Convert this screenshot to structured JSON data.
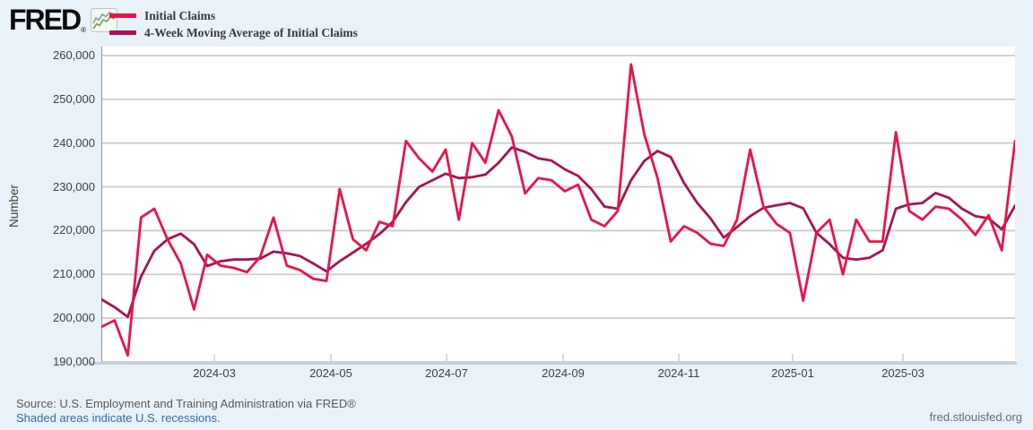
{
  "header": {
    "logo_text": "FRED",
    "registered_mark": "®"
  },
  "legend": {
    "items": [
      {
        "label": "Initial Claims",
        "color": "#e9134a"
      },
      {
        "label": "4-Week Moving Average of Initial Claims",
        "color": "#a61355"
      }
    ]
  },
  "footer": {
    "source_line": "Source: U.S. Employment and Training Administration via FRED®",
    "recession_note": "Shaded areas indicate U.S. recessions.",
    "site_url": "fred.stlouisfed.org"
  },
  "colors": {
    "background": "#e9f1f9",
    "plot_background": "#ffffff",
    "gridline": "#cccccc",
    "axis_line": "#c6cfd9",
    "tick_text": "#424242",
    "link": "#2e6db0",
    "series_initial_claims": "#e9134a",
    "series_moving_average": "#a61355"
  },
  "chart_data": {
    "type": "line",
    "title": "",
    "xlabel": "",
    "ylabel": "Number",
    "ylim": [
      190000,
      260000
    ],
    "grid": true,
    "legend_position": "top-left",
    "y_ticks": [
      {
        "label": "260,000",
        "value": 260000
      },
      {
        "label": "250,000",
        "value": 250000
      },
      {
        "label": "240,000",
        "value": 240000
      },
      {
        "label": "230,000",
        "value": 230000
      },
      {
        "label": "220,000",
        "value": 220000
      },
      {
        "label": "210,000",
        "value": 210000
      },
      {
        "label": "200,000",
        "value": 200000
      },
      {
        "label": "190,000",
        "value": 190000
      }
    ],
    "x_ticks": [
      {
        "label": "2024-03",
        "pos": 0.1237
      },
      {
        "label": "2024-05",
        "pos": 0.2512
      },
      {
        "label": "2024-07",
        "pos": 0.3778
      },
      {
        "label": "2024-09",
        "pos": 0.5054
      },
      {
        "label": "2024-11",
        "pos": 0.632
      },
      {
        "label": "2025-01",
        "pos": 0.7566
      },
      {
        "label": "2025-03",
        "pos": 0.8773
      }
    ],
    "x_range_note": "weekly values, 2024-01 through 2025-04",
    "series": [
      {
        "name": "Initial Claims",
        "color": "#e9134a",
        "values": [
          198000,
          199500,
          191500,
          223000,
          225000,
          218000,
          212500,
          202000,
          214500,
          212000,
          211500,
          210500,
          214000,
          223000,
          212000,
          211000,
          209000,
          208500,
          229500,
          218000,
          215500,
          222000,
          221000,
          240500,
          236500,
          233500,
          238500,
          222500,
          240000,
          235500,
          247500,
          241500,
          228500,
          232000,
          231500,
          229000,
          230500,
          222500,
          221000,
          224500,
          258000,
          242000,
          232000,
          217500,
          221000,
          219500,
          217000,
          216500,
          222500,
          238500,
          225500,
          221500,
          219500,
          204000,
          219500,
          222500,
          210000,
          222500,
          217500,
          217500,
          242500,
          224500,
          222500,
          225500,
          225000,
          222500,
          219000,
          223500,
          215500,
          240500
        ]
      },
      {
        "name": "4-Week Moving Average of Initial Claims",
        "color": "#a61355",
        "values": [
          204300,
          202500,
          200300,
          209500,
          215400,
          218000,
          219300,
          216900,
          211900,
          213000,
          213400,
          213400,
          213600,
          215200,
          214800,
          214200,
          212500,
          210700,
          213000,
          215000,
          217000,
          219200,
          222000,
          226500,
          230000,
          231500,
          233000,
          232000,
          232200,
          232800,
          235500,
          239000,
          238000,
          236500,
          236000,
          234000,
          232500,
          229500,
          225500,
          225000,
          231500,
          235900,
          238200,
          236800,
          230900,
          226300,
          222800,
          218400,
          220800,
          223300,
          225200,
          225800,
          226300,
          225100,
          219500,
          216900,
          213800,
          213400,
          213800,
          215500,
          225000,
          226000,
          226300,
          228600,
          227500,
          225000,
          223300,
          222800,
          220300,
          225700
        ]
      }
    ]
  }
}
